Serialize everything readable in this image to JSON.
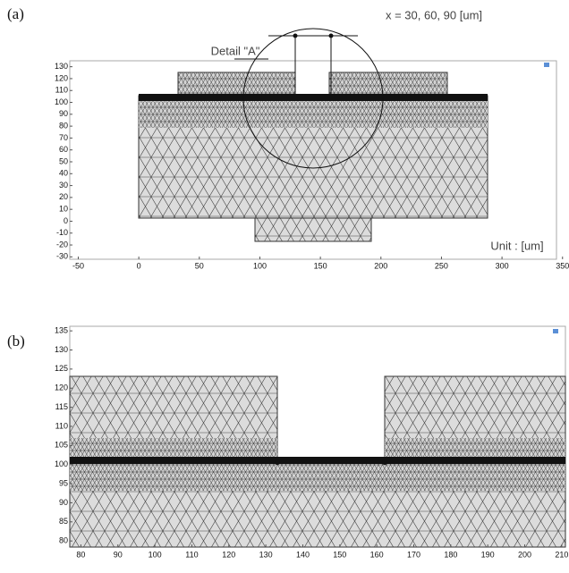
{
  "panels": [
    {
      "label": "(a)",
      "annotation": "x = 30, 60, 90 [um]",
      "detail": "Detail \"A\"",
      "unit": "Unit : [um]",
      "xlim": [
        -57,
        345
      ],
      "ylim": [
        -32,
        135
      ],
      "xticks": [
        -50,
        0,
        50,
        100,
        150,
        200,
        250,
        300,
        350
      ],
      "yticks": [
        130,
        120,
        110,
        100,
        90,
        80,
        70,
        60,
        50,
        40,
        30,
        20,
        10,
        0,
        -10,
        -20,
        -30
      ]
    },
    {
      "label": "(b)",
      "xlim": [
        77,
        211
      ],
      "ylim": [
        78.4,
        136.2
      ],
      "xticks": [
        80,
        90,
        100,
        110,
        120,
        130,
        140,
        150,
        160,
        170,
        180,
        190,
        200,
        210
      ],
      "yticks": [
        135,
        130,
        125,
        120,
        115,
        110,
        105,
        100,
        95,
        90,
        85,
        80
      ]
    }
  ]
}
